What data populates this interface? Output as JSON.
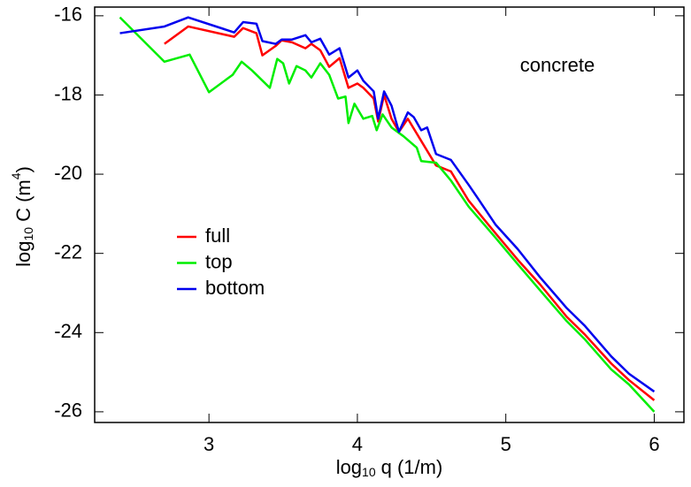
{
  "chart_data": {
    "type": "line",
    "xlabel": {
      "base": "log",
      "sub": "10",
      "rest": "q  (1/m)"
    },
    "ylabel": {
      "base": "log",
      "sub": "10",
      "rest": "C  (m",
      "sup": "4",
      "end": ")"
    },
    "annotation": "concrete",
    "xlim": [
      2.23,
      6.2
    ],
    "ylim": [
      -26.27,
      -15.78
    ],
    "xticks": [
      3,
      4,
      5,
      6
    ],
    "yticks": [
      -16,
      -18,
      -20,
      -22,
      -24,
      -26
    ],
    "series": [
      {
        "name": "full",
        "color": "#ff0000",
        "x": [
          2.7,
          2.86,
          3.17,
          3.23,
          3.32,
          3.36,
          3.45,
          3.49,
          3.56,
          3.65,
          3.69,
          3.75,
          3.81,
          3.88,
          3.94,
          4.0,
          4.04,
          4.11,
          4.14,
          4.18,
          4.23,
          4.28,
          4.34,
          4.43,
          4.53,
          4.63,
          4.75,
          4.93,
          5.08,
          5.23,
          5.41,
          5.53,
          5.71,
          5.83,
          6.0
        ],
        "values": [
          -16.71,
          -16.27,
          -16.53,
          -16.31,
          -16.44,
          -17.0,
          -16.76,
          -16.62,
          -16.67,
          -16.82,
          -16.71,
          -16.87,
          -17.29,
          -17.07,
          -17.82,
          -17.71,
          -17.82,
          -18.09,
          -18.67,
          -18.0,
          -18.6,
          -18.93,
          -18.6,
          -19.16,
          -19.78,
          -19.93,
          -20.67,
          -21.49,
          -22.16,
          -22.78,
          -23.6,
          -24.04,
          -24.78,
          -25.2,
          -25.71
        ]
      },
      {
        "name": "top",
        "color": "#00ee00",
        "x": [
          2.4,
          2.7,
          2.87,
          3.0,
          3.16,
          3.22,
          3.29,
          3.41,
          3.46,
          3.5,
          3.54,
          3.59,
          3.65,
          3.69,
          3.75,
          3.81,
          3.87,
          3.92,
          3.94,
          3.98,
          4.04,
          4.1,
          4.13,
          4.17,
          4.23,
          4.31,
          4.4,
          4.43,
          4.53,
          4.63,
          4.75,
          4.93,
          5.08,
          5.23,
          5.41,
          5.53,
          5.71,
          5.83,
          6.0
        ],
        "values": [
          -16.04,
          -17.16,
          -16.98,
          -17.93,
          -17.49,
          -17.16,
          -17.38,
          -17.82,
          -17.09,
          -17.2,
          -17.71,
          -17.27,
          -17.38,
          -17.56,
          -17.2,
          -17.49,
          -18.09,
          -18.04,
          -18.71,
          -18.22,
          -18.6,
          -18.53,
          -18.89,
          -18.49,
          -18.82,
          -19.04,
          -19.33,
          -19.67,
          -19.71,
          -20.16,
          -20.82,
          -21.6,
          -22.27,
          -22.93,
          -23.71,
          -24.16,
          -24.93,
          -25.31,
          -26.0
        ]
      },
      {
        "name": "bottom",
        "color": "#0000ee",
        "x": [
          2.4,
          2.7,
          2.86,
          3.17,
          3.23,
          3.32,
          3.36,
          3.45,
          3.49,
          3.56,
          3.65,
          3.69,
          3.75,
          3.81,
          3.88,
          3.94,
          4.0,
          4.04,
          4.11,
          4.14,
          4.18,
          4.23,
          4.28,
          4.34,
          4.38,
          4.43,
          4.47,
          4.53,
          4.63,
          4.75,
          4.81,
          4.93,
          5.08,
          5.23,
          5.41,
          5.53,
          5.71,
          5.83,
          6.0
        ],
        "values": [
          -16.44,
          -16.27,
          -16.04,
          -16.42,
          -16.16,
          -16.2,
          -16.64,
          -16.71,
          -16.6,
          -16.6,
          -16.49,
          -16.67,
          -16.58,
          -16.98,
          -16.82,
          -17.56,
          -17.38,
          -17.64,
          -17.91,
          -18.6,
          -17.91,
          -18.27,
          -18.93,
          -18.44,
          -18.56,
          -18.89,
          -18.82,
          -19.49,
          -19.64,
          -20.27,
          -20.6,
          -21.27,
          -21.89,
          -22.6,
          -23.38,
          -23.82,
          -24.6,
          -25.04,
          -25.49
        ]
      }
    ]
  }
}
